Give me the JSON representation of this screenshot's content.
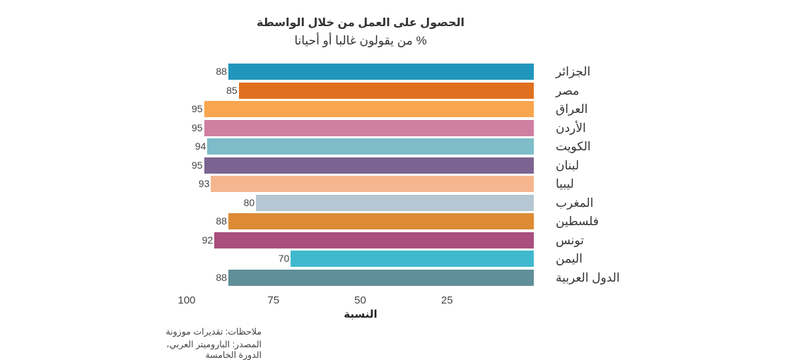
{
  "chart_data": {
    "type": "bar",
    "orientation": "horizontal",
    "title": "الحصول على العمل من خلال الواسطة",
    "subtitle": "% من يقولون غالبا أو أحيانا",
    "categories": [
      "الجزائر",
      "مصر",
      "العراق",
      "الأردن",
      "الكويت",
      "لبنان",
      "ليبيا",
      "المغرب",
      "فلسطين",
      "تونس",
      "اليمن",
      "الدول العربية"
    ],
    "values": [
      88,
      85,
      95,
      95,
      94,
      95,
      93,
      80,
      88,
      92,
      70,
      88
    ],
    "colors": [
      "#2196bd",
      "#e07020",
      "#f9a54f",
      "#cf7fa2",
      "#7ebcc9",
      "#7b6491",
      "#f5b68f",
      "#b6c6d2",
      "#dd8b35",
      "#a94e7e",
      "#3fb8ce",
      "#5f8f99"
    ],
    "xlabel": "النسبة",
    "ylabel": "",
    "xlim": [
      100,
      0
    ],
    "x_ticks": [
      100,
      75,
      50,
      25
    ],
    "x_reversed": true,
    "grid": false,
    "legend": "none",
    "notes": [
      "ملاحظات: تقديرات موزونة",
      "المصدر: الباروميتر العربي، الدورة الخامسة"
    ]
  }
}
